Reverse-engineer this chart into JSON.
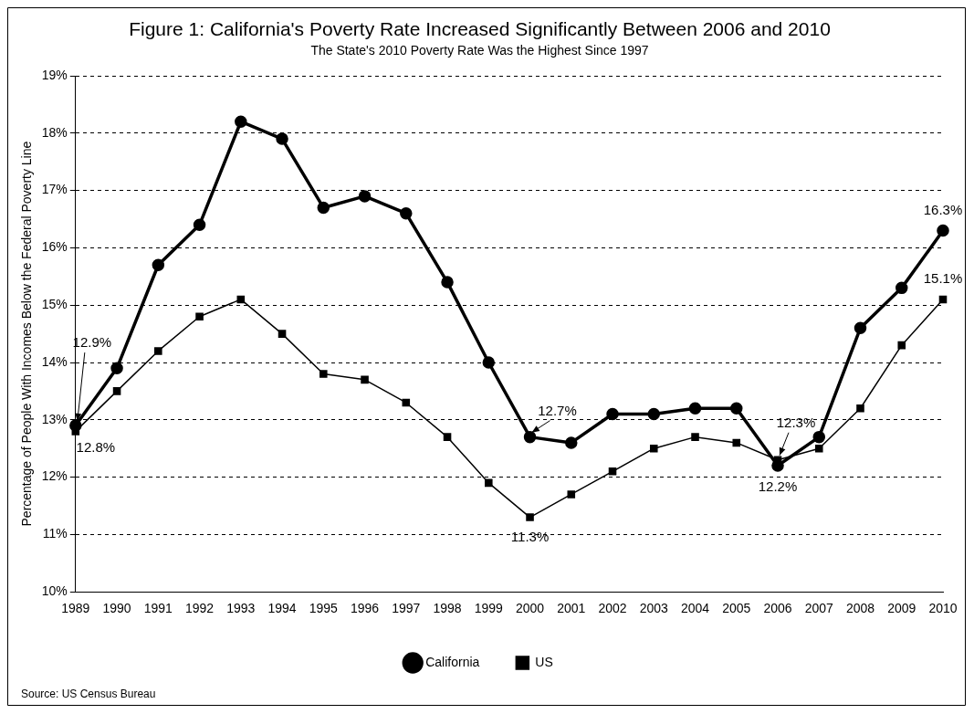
{
  "chart_data": {
    "type": "line",
    "title": "Figure 1: California's Poverty Rate Increased Significantly Between 2006 and 2010",
    "subtitle": "The State's 2010 Poverty Rate Was the Highest Since 1997",
    "ylabel": "Percentage of People With Incomes Below the Federal Poverty Line",
    "categories": [
      "1989",
      "1990",
      "1991",
      "1992",
      "1993",
      "1994",
      "1995",
      "1996",
      "1997",
      "1998",
      "1999",
      "2000",
      "2001",
      "2002",
      "2003",
      "2004",
      "2005",
      "2006",
      "2007",
      "2008",
      "2009",
      "2010"
    ],
    "series": [
      {
        "name": "California",
        "color": "#000000",
        "marker": "circle",
        "values": [
          12.9,
          13.9,
          15.7,
          16.4,
          18.2,
          17.9,
          16.7,
          16.9,
          16.6,
          15.4,
          14.0,
          12.7,
          12.6,
          13.1,
          13.1,
          13.2,
          13.2,
          12.2,
          12.7,
          14.6,
          15.3,
          16.3
        ]
      },
      {
        "name": "US",
        "color": "#000000",
        "marker": "square",
        "values": [
          12.8,
          13.5,
          14.2,
          14.8,
          15.1,
          14.5,
          13.8,
          13.7,
          13.3,
          12.7,
          11.9,
          11.3,
          11.7,
          12.1,
          12.5,
          12.7,
          12.6,
          12.3,
          12.5,
          13.2,
          14.3,
          15.1
        ]
      }
    ],
    "ylim": [
      10,
      19
    ],
    "yticks": [
      {
        "value": 10,
        "label": "10%"
      },
      {
        "value": 11,
        "label": "11%"
      },
      {
        "value": 12,
        "label": "12%"
      },
      {
        "value": 13,
        "label": "13%"
      },
      {
        "value": 14,
        "label": "14%"
      },
      {
        "value": 15,
        "label": "15%"
      },
      {
        "value": 16,
        "label": "16%"
      },
      {
        "value": 17,
        "label": "17%"
      },
      {
        "value": 18,
        "label": "18%"
      },
      {
        "value": 19,
        "label": "19%"
      }
    ],
    "grid": "y",
    "line_style": "solid",
    "legend": "bottom",
    "annotations": [
      {
        "text": "12.9%",
        "x": "1989",
        "y": 12.9
      },
      {
        "text": "12.8%",
        "x": "1989",
        "y": 12.8
      },
      {
        "text": "12.7%",
        "x": "2000",
        "y": 12.7
      },
      {
        "text": "11.3%",
        "x": "2000",
        "y": 11.3
      },
      {
        "text": "12.3%",
        "x": "2006",
        "y": 12.3
      },
      {
        "text": "12.2%",
        "x": "2006",
        "y": 12.2
      },
      {
        "text": "16.3%",
        "x": "2010",
        "y": 16.3
      },
      {
        "text": "15.1%",
        "x": "2010",
        "y": 15.1
      },
      "Source: US Census Bureau"
    ]
  }
}
